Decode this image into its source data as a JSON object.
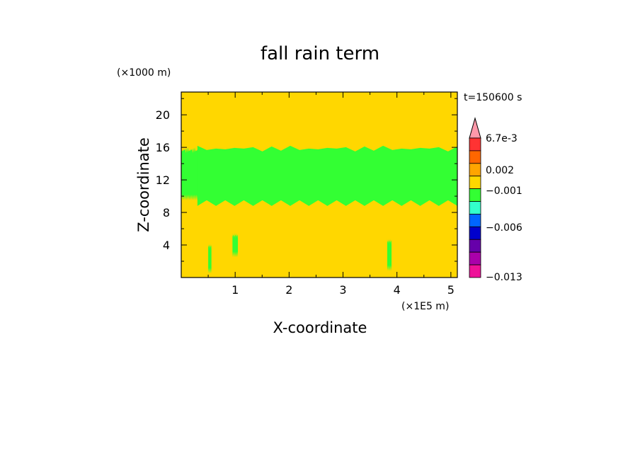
{
  "chart_data": {
    "type": "heatmap",
    "title": "fall rain term",
    "xlabel": "X-coordinate",
    "ylabel": "Z-coordinate",
    "x_unit": "(×1E5 m)",
    "y_unit": "(×1000 m)",
    "time_label": "t=150600 s",
    "x_ticks": [
      "1",
      "2",
      "3",
      "4",
      "5"
    ],
    "y_ticks": [
      "4",
      "8",
      "12",
      "16",
      "20"
    ],
    "x_tick_values": [
      1,
      2,
      3,
      4,
      5
    ],
    "y_tick_values": [
      4,
      8,
      12,
      16,
      20
    ],
    "xlim": [
      0,
      5.12
    ],
    "ylim": [
      0,
      22.8
    ],
    "background_value_color": "#ffd700",
    "region_color": "#33ff33",
    "regions": [
      {
        "x": [
          0.0,
          0.35
        ],
        "z": [
          9.5,
          16.0
        ]
      },
      {
        "x": [
          0.3,
          5.12
        ],
        "z": [
          8.8,
          16.2
        ]
      },
      {
        "x": [
          0.5,
          0.56
        ],
        "z": [
          0.5,
          4.2
        ]
      },
      {
        "x": [
          0.95,
          1.05
        ],
        "z": [
          2.5,
          5.5
        ]
      },
      {
        "x": [
          3.82,
          3.9
        ],
        "z": [
          0.8,
          4.8
        ]
      }
    ],
    "colorbar": {
      "labels": [
        "6.7e-3",
        "0.002",
        "−0.001",
        "−0.006",
        "−0.013"
      ],
      "colors": [
        "#ff99aa",
        "#ff3333",
        "#ff6600",
        "#ffa500",
        "#ffd700",
        "#33ff33",
        "#33ffcc",
        "#0066ff",
        "#0000cc",
        "#6600aa",
        "#aa00aa",
        "#ee1199"
      ]
    }
  }
}
